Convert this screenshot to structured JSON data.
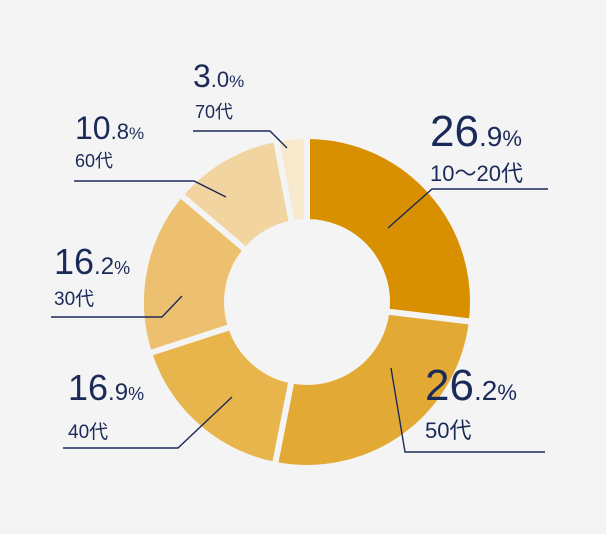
{
  "chart_data": {
    "type": "pie",
    "variant": "donut",
    "slices": [
      {
        "label": "10～20代",
        "int": "26",
        "frac": ".9",
        "unit": "%",
        "value": 26.9,
        "color": "#d89000"
      },
      {
        "label": "50代",
        "int": "26",
        "frac": ".2",
        "unit": "%",
        "value": 26.2,
        "color": "#e3a935"
      },
      {
        "label": "40代",
        "int": "16",
        "frac": ".9",
        "unit": "%",
        "value": 16.9,
        "color": "#e8b54c"
      },
      {
        "label": "30代",
        "int": "16",
        "frac": ".2",
        "unit": "%",
        "value": 16.2,
        "color": "#ecc06e"
      },
      {
        "label": "60代",
        "int": "10",
        "frac": ".8",
        "unit": "%",
        "value": 10.8,
        "color": "#f1d49f"
      },
      {
        "label": "70代",
        "int": "3",
        "frac": ".0",
        "unit": "%",
        "value": 3.0,
        "color": "#f7e9cc"
      }
    ],
    "start": "12 o'clock",
    "direction": "clockwise",
    "gap_color": "#f4f4f4",
    "text_color": "#1c2a5a"
  }
}
